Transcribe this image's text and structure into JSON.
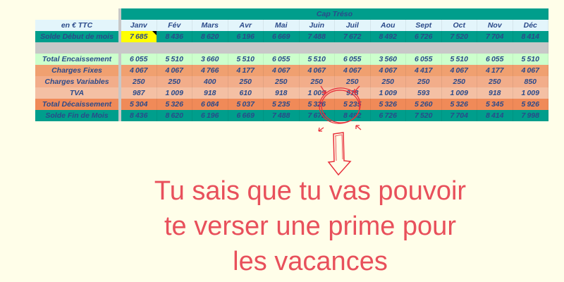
{
  "table": {
    "title": "Cap Tréso",
    "unit_label": "en € TTC",
    "months": [
      "Janv",
      "Fév",
      "Mars",
      "Avr",
      "Mai",
      "Juin",
      "Juil",
      "Aou",
      "Sept",
      "Oct",
      "Nov",
      "Déc"
    ],
    "rows": [
      {
        "key": "sdm",
        "label": "Solde Début de mois",
        "values": [
          "7685",
          "8436",
          "8620",
          "6196",
          "6669",
          "7488",
          "7672",
          "8492",
          "6726",
          "7520",
          "7704",
          "8414"
        ]
      },
      {
        "key": "enc",
        "label": "Total Encaissement",
        "values": [
          "6055",
          "5510",
          "3660",
          "5510",
          "6055",
          "5510",
          "6055",
          "3560",
          "6055",
          "5510",
          "6055",
          "5510"
        ]
      },
      {
        "key": "cf",
        "label": "Charges Fixes",
        "values": [
          "4067",
          "4067",
          "4766",
          "4177",
          "4067",
          "4067",
          "4067",
          "4067",
          "4417",
          "4067",
          "4177",
          "4067"
        ]
      },
      {
        "key": "cv",
        "label": "Charges Variables",
        "values": [
          "250",
          "250",
          "400",
          "250",
          "250",
          "250",
          "250",
          "250",
          "250",
          "250",
          "250",
          "850"
        ]
      },
      {
        "key": "tva",
        "label": "TVA",
        "values": [
          "987",
          "1009",
          "918",
          "610",
          "918",
          "1009",
          "918",
          "1009",
          "593",
          "1009",
          "918",
          "1009"
        ]
      },
      {
        "key": "td",
        "label": "Total Décaissement",
        "values": [
          "5304",
          "5326",
          "6084",
          "5037",
          "5235",
          "5326",
          "5235",
          "5326",
          "5260",
          "5326",
          "5345",
          "5926"
        ]
      },
      {
        "key": "sfm",
        "label": "Solde Fin de Mois",
        "values": [
          "8436",
          "8620",
          "6196",
          "6669",
          "7488",
          "7672",
          "8492",
          "6726",
          "7520",
          "7704",
          "8414",
          "7998"
        ]
      }
    ]
  },
  "caption": {
    "lines": [
      "Tu sais que tu vas pouvoir",
      "te verser une prime pour",
      "les vacances"
    ]
  },
  "colors": {
    "accent_teal": "#009e8c",
    "annotation_red": "#e8505b",
    "highlight_yellow": "#ffff00"
  }
}
